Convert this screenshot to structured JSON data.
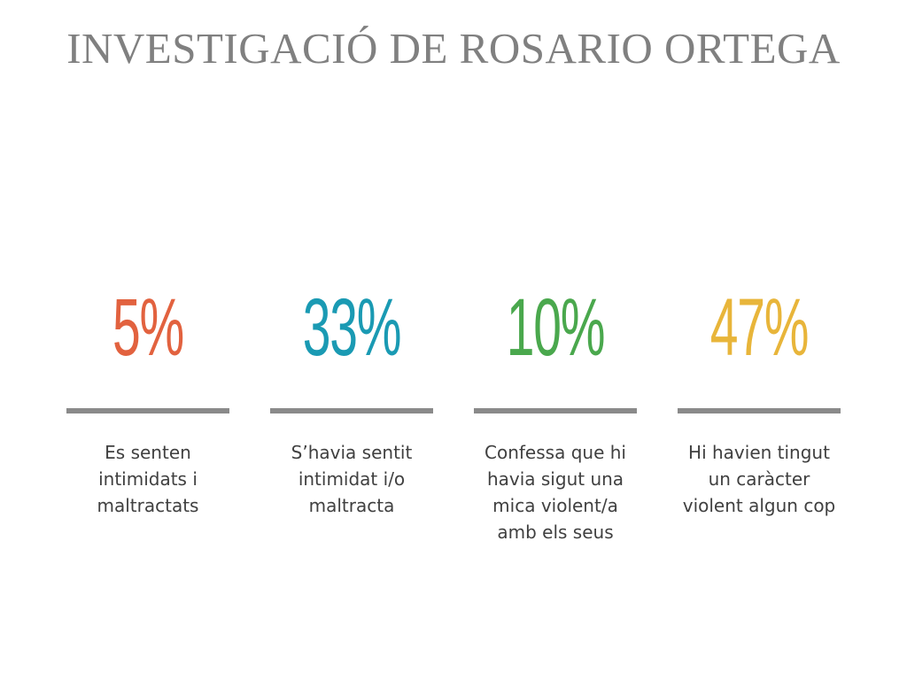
{
  "title": "INVESTIGACIÓ DE ROSARIO ORTEGA",
  "stats": [
    {
      "value": "5%",
      "color": "#e2623f",
      "caption": "Es senten\nintimidats i\nmaltractats"
    },
    {
      "value": "33%",
      "color": "#1a9ab3",
      "caption": "S’havia sentit\nintimidat i/o\nmaltracta"
    },
    {
      "value": "10%",
      "color": "#4aa84d",
      "caption": "Confessa que hi\nhavia sigut una\nmica violent/a\namb els seus"
    },
    {
      "value": "47%",
      "color": "#e8b53a",
      "caption": "Hi havien tingut\nun caràcter\nviolent algun cop"
    }
  ]
}
